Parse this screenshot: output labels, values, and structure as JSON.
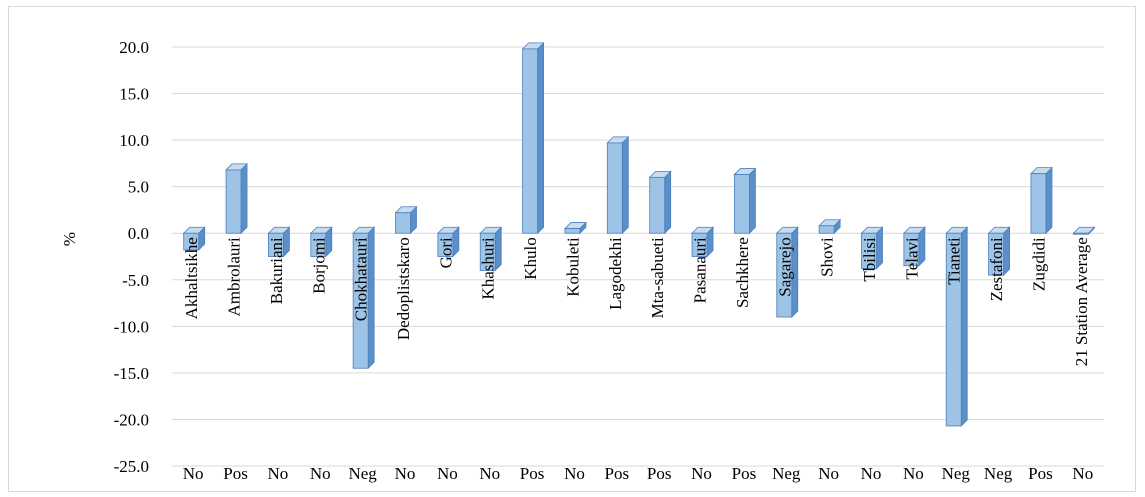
{
  "chart_data": {
    "type": "bar",
    "title": "",
    "xlabel": "",
    "ylabel": "%",
    "ylim": [
      -25,
      20
    ],
    "yticks": [
      20,
      15,
      10,
      5,
      0,
      -5,
      -10,
      -15,
      -20,
      -25
    ],
    "grid": true,
    "categories": [
      "Akhaltsikhe",
      "Ambrolauri",
      "Bakuriani",
      "Borjomi",
      "Chokhatauri",
      "Dedoplistskaro",
      "Gori",
      "Khashuri",
      "Khulo",
      "Kobuleti",
      "Lagodekhi",
      "Mta-sabueti",
      "Pasanauri",
      "Sachkhere",
      "Sagarejo",
      "Shovi",
      "Tbilisi",
      "Telavi",
      "Tianeti",
      "Zestafoni",
      "Zugdidi",
      "21 Station Average"
    ],
    "values": [
      -1.8,
      6.8,
      -2.5,
      -2.5,
      -14.5,
      2.2,
      -2.5,
      -4.0,
      19.8,
      0.5,
      9.7,
      6.0,
      -2.5,
      6.3,
      -9.0,
      0.8,
      -3.8,
      -3.5,
      -20.7,
      -4.5,
      6.4,
      -0.1
    ],
    "significance": [
      "No",
      "Pos",
      "No",
      "No",
      "Neg",
      "No",
      "No",
      "No",
      "Pos",
      "No",
      "Pos",
      "Pos",
      "No",
      "Pos",
      "Neg",
      "No",
      "No",
      "No",
      "Neg",
      "Neg",
      "Pos",
      "No"
    ],
    "colors": {
      "bar_front": "#9dc3e6",
      "bar_side": "#5b8fc9",
      "bar_top": "#c5dcf1",
      "bar_edge": "#4a7ebb",
      "grid": "#d9d9d9"
    }
  }
}
